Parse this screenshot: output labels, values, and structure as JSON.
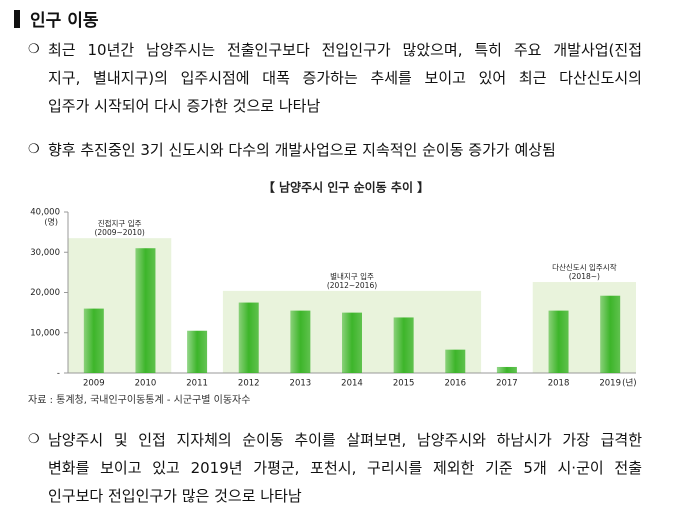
{
  "header": {
    "title": "인구 이동"
  },
  "paragraphs": [
    {
      "bullet": "❍",
      "lines": [
        "최근 10년간 남양주시는 전출인구보다 전입인구가 많았으며, 특히 주요 개발사업(진접",
        "지구, 별내지구)의 입주시점에 대폭 증가하는 추세를 보이고 있어 최근 다산신도시의",
        "입주가 시작되어 다시 증가한 것으로 나타남"
      ]
    },
    {
      "bullet": "❍",
      "lines": [
        "향후 추진중인 3기 신도시와 다수의 개발사업으로 지속적인 순이동 증가가 예상됨"
      ]
    },
    {
      "bullet": "❍",
      "lines": [
        "남양주시 및 인접 지자체의 순이동 추이를 살펴보면, 남양주시와 하남시가 가장 급격한",
        "변화를 보이고 있고 2019년 가평군, 포천시, 구리시를 제외한 기준 5개 시·군이 전출",
        "인구보다 전입인구가 많은 것으로 나타남"
      ]
    }
  ],
  "chart_data": {
    "type": "bar",
    "title": "【 남양주시 인구 순이동 추이 】",
    "y_unit": "(명)",
    "x_unit": "(년)",
    "categories": [
      "2009",
      "2010",
      "2011",
      "2012",
      "2013",
      "2014",
      "2015",
      "2016",
      "2017",
      "2018",
      "2019"
    ],
    "values": [
      16000,
      31000,
      10500,
      17500,
      15500,
      15000,
      13800,
      5800,
      1500,
      15500,
      19200
    ],
    "color": "#3db52a",
    "ylim": [
      0,
      40000
    ],
    "yticks": [
      {
        "value": 0,
        "label": "-"
      },
      {
        "value": 10000,
        "label": "10,000"
      },
      {
        "value": 20000,
        "label": "20,000"
      },
      {
        "value": 30000,
        "label": "30,000"
      },
      {
        "value": 40000,
        "label": "40,000"
      }
    ],
    "grid": false,
    "annotations": [
      {
        "label": "진접지구 입주",
        "period": "(2009~2010)",
        "from": "2009",
        "to": "2010",
        "top": 33500
      },
      {
        "label": "별내지구 입주",
        "period": "(2012~2016)",
        "from": "2012",
        "to": "2016",
        "top": 20400
      },
      {
        "label": "다산신도시 입주시작",
        "period": "(2018~)",
        "from": "2018",
        "to": "2019",
        "top": 22600
      }
    ],
    "band_color": "#e9f3dc"
  },
  "source": "자료 : 통계청, 국내인구이동통계 - 시군구별 이동자수"
}
